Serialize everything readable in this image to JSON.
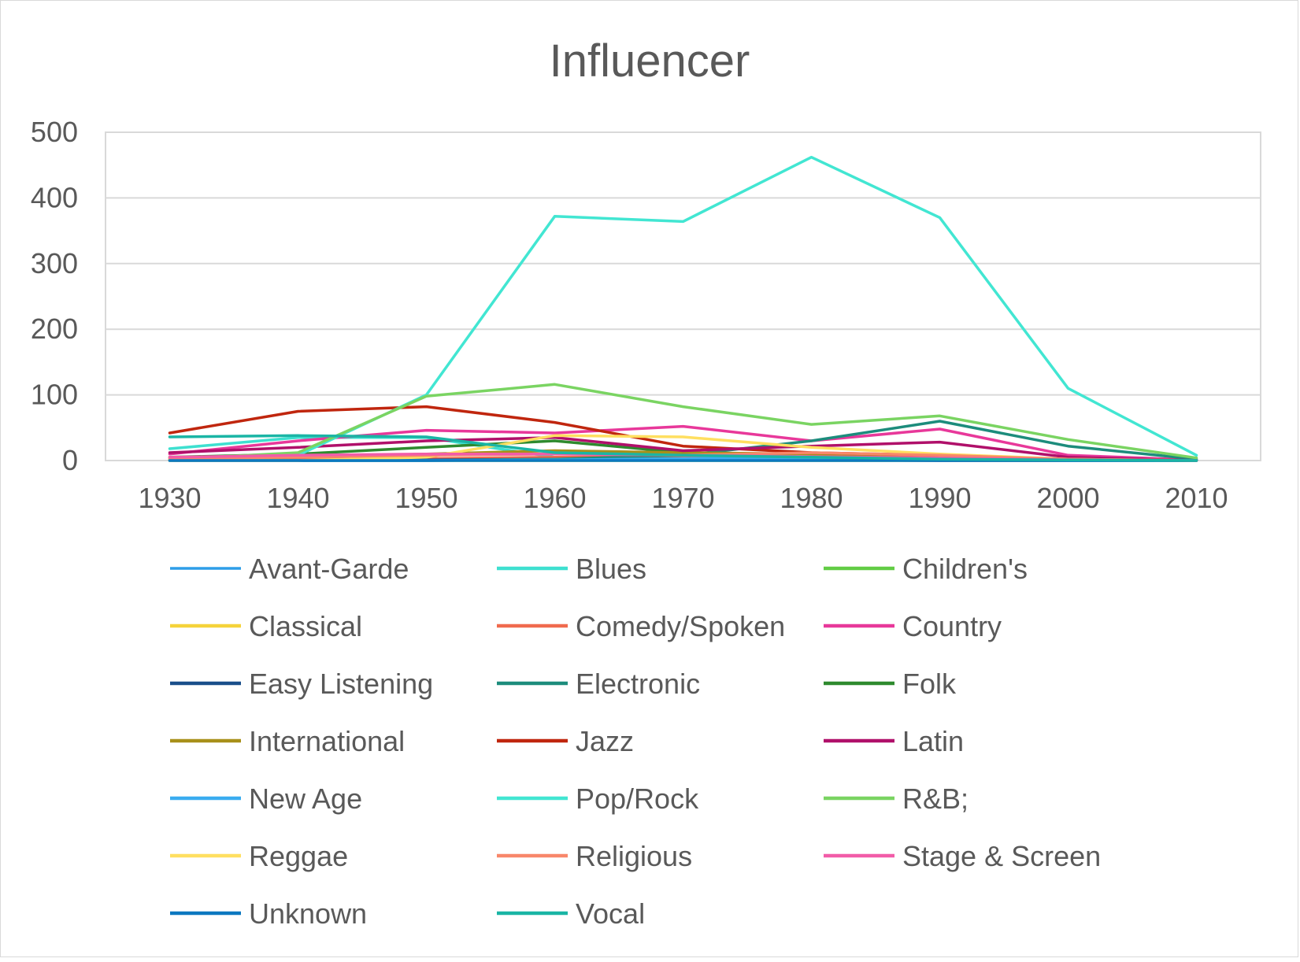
{
  "chart_data": {
    "type": "line",
    "title": "Influencer",
    "xlabel": "",
    "ylabel": "",
    "x": [
      "1930",
      "1940",
      "1950",
      "1960",
      "1970",
      "1980",
      "1990",
      "2000",
      "2010"
    ],
    "y_ticks": [
      "0",
      "100",
      "200",
      "300",
      "400",
      "500"
    ],
    "ylim": [
      0,
      500
    ],
    "grid": true,
    "legend_position": "bottom",
    "series": [
      {
        "name": "Avant-Garde",
        "color": "#2e9ee8",
        "width": 2.5,
        "values": [
          0,
          0,
          1,
          2,
          2,
          2,
          1,
          0,
          0
        ]
      },
      {
        "name": "Blues",
        "color": "#3ee0d0",
        "width": 3.5,
        "values": [
          18,
          35,
          35,
          5,
          5,
          3,
          2,
          1,
          0
        ]
      },
      {
        "name": "Children's",
        "color": "#62cc45",
        "width": 3.5,
        "values": [
          0,
          0,
          0,
          0,
          0,
          0,
          0,
          0,
          0
        ]
      },
      {
        "name": "Classical",
        "color": "#f5d33a",
        "width": 3.5,
        "values": [
          5,
          3,
          3,
          3,
          5,
          5,
          2,
          1,
          0
        ]
      },
      {
        "name": "Comedy/Spoken",
        "color": "#f06a4e",
        "width": 3.5,
        "values": [
          0,
          2,
          3,
          5,
          5,
          5,
          3,
          1,
          0
        ]
      },
      {
        "name": "Country",
        "color": "#e8389a",
        "width": 3.5,
        "values": [
          10,
          30,
          46,
          42,
          52,
          30,
          48,
          8,
          1
        ]
      },
      {
        "name": "Easy Listening",
        "color": "#1a4f8a",
        "width": 3.5,
        "values": [
          0,
          0,
          1,
          2,
          1,
          1,
          0,
          0,
          0
        ]
      },
      {
        "name": "Electronic",
        "color": "#1c8c7c",
        "width": 3.5,
        "values": [
          0,
          0,
          0,
          2,
          8,
          30,
          60,
          22,
          2
        ]
      },
      {
        "name": "Folk",
        "color": "#2e8a2e",
        "width": 3.5,
        "values": [
          5,
          10,
          20,
          30,
          12,
          5,
          3,
          1,
          0
        ]
      },
      {
        "name": "International",
        "color": "#a8901a",
        "width": 3.5,
        "values": [
          2,
          5,
          10,
          15,
          12,
          10,
          5,
          2,
          0
        ]
      },
      {
        "name": "Jazz",
        "color": "#c0260e",
        "width": 3.5,
        "values": [
          42,
          75,
          82,
          58,
          22,
          12,
          8,
          2,
          0
        ]
      },
      {
        "name": "Latin",
        "color": "#b0106a",
        "width": 3.5,
        "values": [
          12,
          20,
          30,
          35,
          15,
          22,
          28,
          5,
          0
        ]
      },
      {
        "name": "New Age",
        "color": "#3aacf0",
        "width": 3.5,
        "values": [
          0,
          0,
          0,
          1,
          3,
          4,
          2,
          0,
          0
        ]
      },
      {
        "name": "Pop/Rock",
        "color": "#42e6d2",
        "width": 3.5,
        "values": [
          0,
          8,
          100,
          372,
          364,
          462,
          370,
          110,
          8
        ]
      },
      {
        "name": "R&B;",
        "color": "#7ad462",
        "width": 3.5,
        "values": [
          2,
          12,
          98,
          116,
          82,
          55,
          68,
          32,
          4
        ]
      },
      {
        "name": "Reggae",
        "color": "#ffdf60",
        "width": 3.5,
        "values": [
          0,
          0,
          5,
          38,
          36,
          20,
          10,
          2,
          0
        ]
      },
      {
        "name": "Religious",
        "color": "#f8876a",
        "width": 3.5,
        "values": [
          3,
          5,
          8,
          10,
          8,
          12,
          8,
          2,
          0
        ]
      },
      {
        "name": "Stage & Screen",
        "color": "#f25ca8",
        "width": 3.5,
        "values": [
          5,
          8,
          10,
          10,
          8,
          6,
          4,
          1,
          0
        ]
      },
      {
        "name": "Unknown",
        "color": "#0c78c0",
        "width": 3.5,
        "values": [
          0,
          0,
          0,
          0,
          0,
          0,
          0,
          0,
          0
        ]
      },
      {
        "name": "Vocal",
        "color": "#1ab5a5",
        "width": 3.5,
        "values": [
          36,
          38,
          36,
          12,
          8,
          5,
          2,
          1,
          0
        ]
      }
    ]
  }
}
